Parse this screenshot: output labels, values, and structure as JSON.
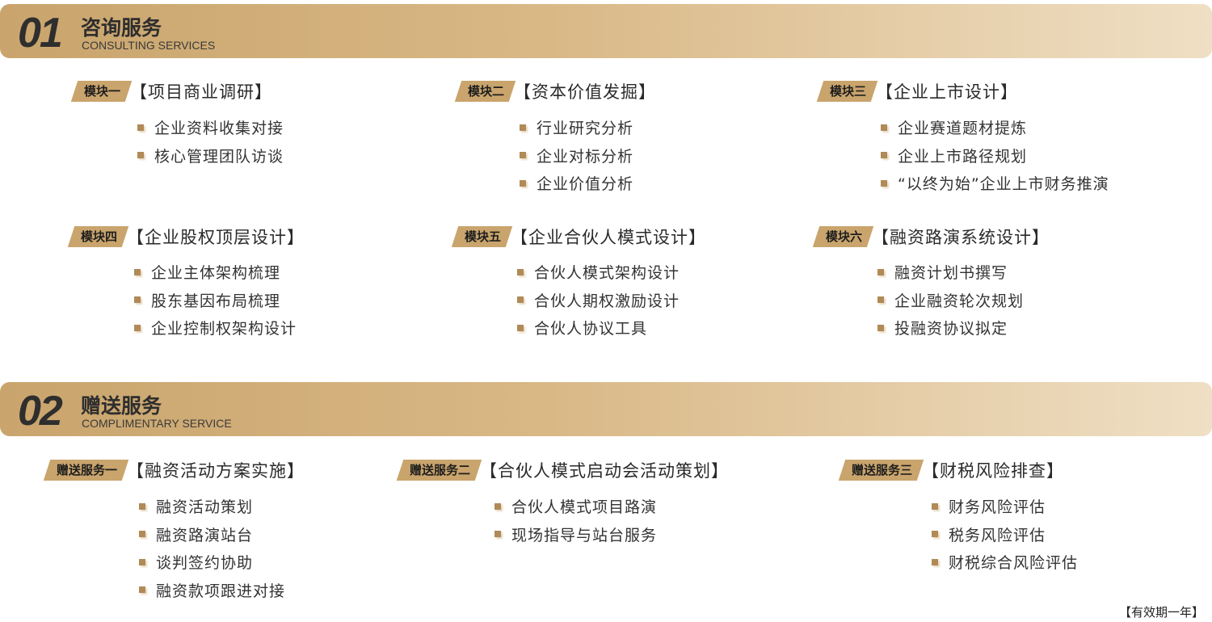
{
  "sections": [
    {
      "number": "01",
      "title": "咨询服务",
      "subtitle": "CONSULTING SERVICES",
      "groups": [
        {
          "tag": "模块一",
          "title": "【项目商业调研】",
          "items": [
            "企业资料收集对接",
            "核心管理团队访谈"
          ]
        },
        {
          "tag": "模块二",
          "title": "【资本价值发掘】",
          "items": [
            "行业研究分析",
            "企业对标分析",
            "企业价值分析"
          ]
        },
        {
          "tag": "模块三",
          "title": "【企业上市设计】",
          "items": [
            "企业赛道题材提炼",
            "企业上市路径规划",
            "“以终为始”企业上市财务推演"
          ]
        },
        {
          "tag": "模块四",
          "title": "【企业股权顶层设计】",
          "items": [
            "企业主体架构梳理",
            "股东基因布局梳理",
            "企业控制权架构设计"
          ]
        },
        {
          "tag": "模块五",
          "title": "【企业合伙人模式设计】",
          "items": [
            "合伙人模式架构设计",
            "合伙人期权激励设计",
            "合伙人协议工具"
          ]
        },
        {
          "tag": "模块六",
          "title": "【融资路演系统设计】",
          "items": [
            "融资计划书撰写",
            "企业融资轮次规划",
            "投融资协议拟定"
          ]
        }
      ]
    },
    {
      "number": "02",
      "title": "赠送服务",
      "subtitle": "COMPLIMENTARY SERVICE",
      "groups": [
        {
          "tag": "赠送服务一",
          "title": "【融资活动方案实施】",
          "items": [
            "融资活动策划",
            "融资路演站台",
            "谈判签约协助",
            "融资款项跟进对接"
          ]
        },
        {
          "tag": "赠送服务二",
          "title": "【合伙人模式启动会活动策划】",
          "items": [
            "合伙人模式项目路演",
            "现场指导与站台服务"
          ]
        },
        {
          "tag": "赠送服务三",
          "title": "【财税风险排查】",
          "items": [
            "财务风险评估",
            "税务风险评估",
            "财税综合风险评估"
          ]
        }
      ]
    }
  ],
  "footer": "【有效期一年】",
  "colors": {
    "accent": "#c9a46c",
    "bullet": "#b08a57",
    "text": "#333333"
  }
}
